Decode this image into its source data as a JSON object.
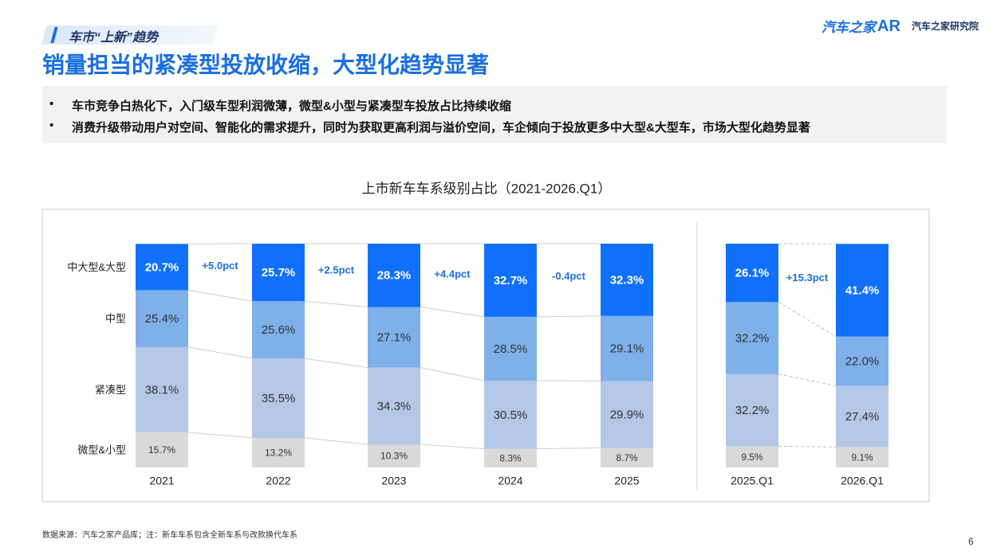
{
  "header": {
    "section": "车市“上新”趋势",
    "title": "销量担当的紧凑型投放收缩，大型化趋势显著",
    "logo": "汽车之家",
    "institute": "汽车之家研究院"
  },
  "bullets": [
    "车市竞争白热化下，入门级车型利润微薄，微型&小型与紧凑型车投放占比持续收缩",
    "消费升级带动用户对空间、智能化的需求提升，同时为获取更高利润与溢价空间，车企倾向于投放更多中大型&大型车，市场大型化趋势显著"
  ],
  "chart_data": {
    "type": "stacked_bar",
    "title": "上市新车车系级别占比（2021-2026.Q1）",
    "categories": [
      "2021",
      "2022",
      "2023",
      "2024",
      "2025",
      "2025.Q1",
      "2026.Q1"
    ],
    "ylim": [
      0,
      100
    ],
    "series": [
      {
        "name": "微型&小型",
        "color": "#d9d9d9",
        "values": [
          15.7,
          13.2,
          10.3,
          8.3,
          8.7,
          9.5,
          9.1
        ],
        "value_labels": [
          "15.7%",
          "13.2%",
          "10.3%",
          "8.3%",
          "8.7%",
          "9.5%",
          "9.1%"
        ]
      },
      {
        "name": "紧凑型",
        "color": "#b4c7e7",
        "values": [
          38.1,
          35.5,
          34.3,
          30.5,
          29.9,
          32.2,
          27.4
        ],
        "value_labels": [
          "38.1%",
          "35.5%",
          "34.3%",
          "30.5%",
          "29.9%",
          "32.2%",
          "27.4%"
        ]
      },
      {
        "name": "中型",
        "color": "#7eb0ea",
        "values": [
          25.4,
          25.6,
          27.1,
          28.5,
          29.1,
          32.2,
          22.0
        ],
        "value_labels": [
          "25.4%",
          "25.6%",
          "27.1%",
          "28.5%",
          "29.1%",
          "32.2%",
          "22.0%"
        ]
      },
      {
        "name": "中大型&大型",
        "color": "#1170fb",
        "values": [
          20.7,
          25.7,
          28.3,
          32.7,
          32.3,
          26.1,
          41.4
        ],
        "value_labels": [
          "20.7%",
          "25.7%",
          "28.3%",
          "32.7%",
          "32.3%",
          "26.1%",
          "41.4%"
        ]
      }
    ],
    "annotations": [
      "+5.0pct",
      "+2.5pct",
      "+4.4pct",
      "-0.4pct",
      "+15.3pct"
    ]
  },
  "footer": {
    "source": "数据来源：汽车之家产品库；注：新车车系包含全新车系与改款换代车系",
    "page": "6"
  }
}
